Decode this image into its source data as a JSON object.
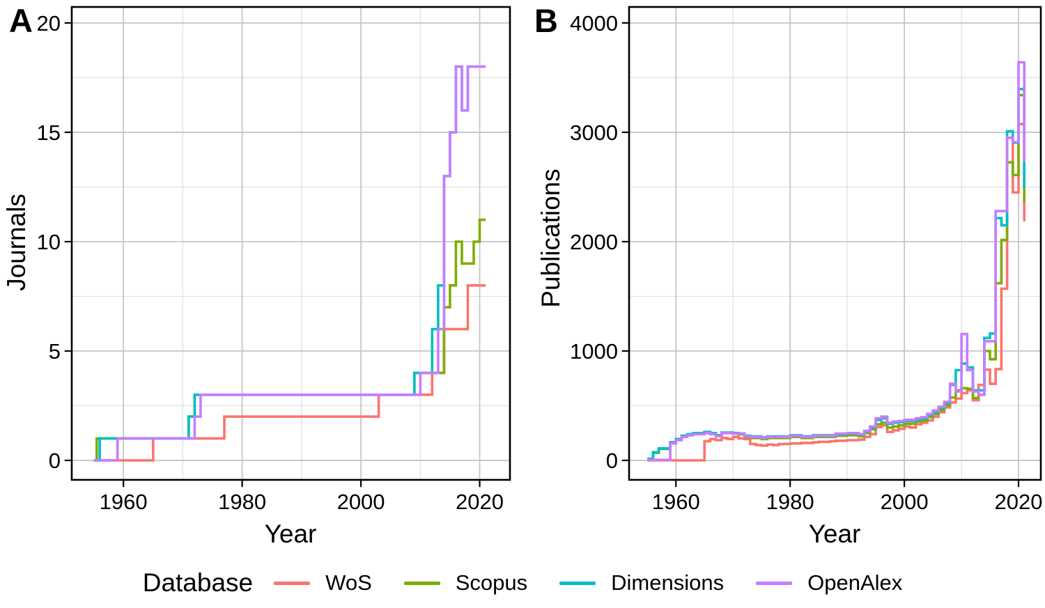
{
  "figure": {
    "panel_a_label": "A",
    "panel_b_label": "B",
    "background": "#ffffff"
  },
  "legend": {
    "title": "Database",
    "items": [
      {
        "key": "wos",
        "label": "WoS",
        "color": "#F8766D"
      },
      {
        "key": "scopus",
        "label": "Scopus",
        "color": "#7CAE00"
      },
      {
        "key": "dimensions",
        "label": "Dimensions",
        "color": "#00BFC4"
      },
      {
        "key": "openalex",
        "label": "OpenAlex",
        "color": "#C77CFF"
      }
    ]
  },
  "chart_data": [
    {
      "panel": "A",
      "type": "line",
      "step": true,
      "title": "",
      "xlabel": "Year",
      "ylabel": "Journals",
      "x_ticks": [
        1960,
        1980,
        2000,
        2020
      ],
      "x_minor": [
        1970,
        1990,
        2010
      ],
      "y_ticks": [
        0,
        5,
        10,
        15,
        20
      ],
      "y_minor": [
        2.5,
        7.5,
        12.5,
        17.5
      ],
      "xlim": [
        1951.3,
        2025.1
      ],
      "ylim": [
        -0.89,
        20.73
      ],
      "grid": true,
      "legend_position": "bottom",
      "series": [
        {
          "name": "WoS",
          "color": "#F8766D",
          "points": [
            [
              1955,
              0
            ],
            [
              1965,
              1
            ],
            [
              1977,
              2
            ],
            [
              2003,
              3
            ],
            [
              2012,
              4
            ],
            [
              2014,
              6
            ],
            [
              2018,
              8
            ],
            [
              2021,
              8
            ]
          ]
        },
        {
          "name": "Scopus",
          "color": "#7CAE00",
          "points": [
            [
              1955,
              0
            ],
            [
              1955.5,
              1
            ],
            [
              1971,
              2
            ],
            [
              1972,
              3
            ],
            [
              2009,
              4
            ],
            [
              2014,
              7
            ],
            [
              2015,
              8
            ],
            [
              2016,
              10
            ],
            [
              2017,
              9
            ],
            [
              2019,
              10
            ],
            [
              2020,
              11
            ],
            [
              2021,
              11
            ]
          ]
        },
        {
          "name": "Dimensions",
          "color": "#00BFC4",
          "points": [
            [
              1955,
              0
            ],
            [
              1956,
              1
            ],
            [
              1971,
              2
            ],
            [
              1972,
              3
            ],
            [
              2009,
              4
            ],
            [
              2012,
              6
            ],
            [
              2013,
              8
            ],
            [
              2014,
              13
            ],
            [
              2015,
              15
            ],
            [
              2016,
              18
            ],
            [
              2017,
              16
            ],
            [
              2018,
              18
            ],
            [
              2021,
              18
            ]
          ]
        },
        {
          "name": "OpenAlex",
          "color": "#C77CFF",
          "points": [
            [
              1955,
              0
            ],
            [
              1959,
              1
            ],
            [
              1972,
              2
            ],
            [
              1973,
              3
            ],
            [
              2010,
              4
            ],
            [
              2013,
              6
            ],
            [
              2014,
              13
            ],
            [
              2015,
              15
            ],
            [
              2016,
              18
            ],
            [
              2017,
              16
            ],
            [
              2018,
              18
            ],
            [
              2021,
              18
            ]
          ]
        }
      ]
    },
    {
      "panel": "B",
      "type": "line",
      "step": true,
      "title": "",
      "xlabel": "Year",
      "ylabel": "Publications",
      "x_ticks": [
        1960,
        1980,
        2000,
        2020
      ],
      "x_minor": [
        1970,
        1990,
        2010
      ],
      "y_ticks": [
        0,
        1000,
        2000,
        3000,
        4000
      ],
      "y_minor": [
        500,
        1500,
        2500,
        3500
      ],
      "xlim": [
        1951.8,
        2023.9
      ],
      "ylim": [
        -178,
        4146
      ],
      "grid": true,
      "legend_position": "bottom",
      "series": [
        {
          "name": "WoS",
          "color": "#F8766D",
          "points": [
            [
              1955,
              0
            ],
            [
              1965,
              175
            ],
            [
              1966,
              195
            ],
            [
              1967,
              185
            ],
            [
              1968,
              205
            ],
            [
              1969,
              195
            ],
            [
              1970,
              215
            ],
            [
              1971,
              200
            ],
            [
              1972,
              195
            ],
            [
              1973,
              150
            ],
            [
              1974,
              140
            ],
            [
              1975,
              135
            ],
            [
              1976,
              145
            ],
            [
              1977,
              140
            ],
            [
              1978,
              150
            ],
            [
              1980,
              155
            ],
            [
              1982,
              160
            ],
            [
              1984,
              165
            ],
            [
              1985,
              170
            ],
            [
              1987,
              175
            ],
            [
              1988,
              180
            ],
            [
              1990,
              185
            ],
            [
              1992,
              190
            ],
            [
              1993,
              215
            ],
            [
              1994,
              240
            ],
            [
              1995,
              305
            ],
            [
              1996,
              320
            ],
            [
              1997,
              260
            ],
            [
              1998,
              275
            ],
            [
              1999,
              290
            ],
            [
              2000,
              310
            ],
            [
              2001,
              300
            ],
            [
              2002,
              330
            ],
            [
              2003,
              345
            ],
            [
              2004,
              365
            ],
            [
              2005,
              400
            ],
            [
              2006,
              440
            ],
            [
              2007,
              485
            ],
            [
              2008,
              530
            ],
            [
              2009,
              565
            ],
            [
              2010,
              615
            ],
            [
              2011,
              640
            ],
            [
              2012,
              550
            ],
            [
              2013,
              690
            ],
            [
              2014,
              830
            ],
            [
              2015,
              700
            ],
            [
              2016,
              835
            ],
            [
              2017,
              1570
            ],
            [
              2018,
              2950
            ],
            [
              2019,
              2450
            ],
            [
              2020,
              3075
            ],
            [
              2021,
              2185
            ]
          ]
        },
        {
          "name": "Scopus",
          "color": "#7CAE00",
          "points": [
            [
              1955,
              10
            ],
            [
              1956,
              70
            ],
            [
              1957,
              105
            ],
            [
              1959,
              160
            ],
            [
              1960,
              190
            ],
            [
              1961,
              220
            ],
            [
              1962,
              235
            ],
            [
              1963,
              245
            ],
            [
              1965,
              255
            ],
            [
              1966,
              245
            ],
            [
              1967,
              225
            ],
            [
              1968,
              250
            ],
            [
              1970,
              245
            ],
            [
              1971,
              240
            ],
            [
              1972,
              215
            ],
            [
              1973,
              205
            ],
            [
              1975,
              195
            ],
            [
              1976,
              205
            ],
            [
              1978,
              205
            ],
            [
              1980,
              215
            ],
            [
              1982,
              205
            ],
            [
              1984,
              215
            ],
            [
              1986,
              215
            ],
            [
              1988,
              225
            ],
            [
              1990,
              230
            ],
            [
              1992,
              220
            ],
            [
              1993,
              250
            ],
            [
              1994,
              285
            ],
            [
              1995,
              330
            ],
            [
              1996,
              345
            ],
            [
              1997,
              300
            ],
            [
              1998,
              310
            ],
            [
              1999,
              320
            ],
            [
              2000,
              335
            ],
            [
              2002,
              355
            ],
            [
              2003,
              365
            ],
            [
              2004,
              395
            ],
            [
              2005,
              425
            ],
            [
              2006,
              460
            ],
            [
              2007,
              505
            ],
            [
              2008,
              575
            ],
            [
              2009,
              640
            ],
            [
              2010,
              660
            ],
            [
              2011,
              655
            ],
            [
              2012,
              570
            ],
            [
              2013,
              600
            ],
            [
              2014,
              1000
            ],
            [
              2015,
              925
            ],
            [
              2016,
              1620
            ],
            [
              2017,
              2015
            ],
            [
              2018,
              2725
            ],
            [
              2019,
              2610
            ],
            [
              2020,
              3340
            ],
            [
              2021,
              2365
            ]
          ]
        },
        {
          "name": "Dimensions",
          "color": "#00BFC4",
          "points": [
            [
              1955,
              15
            ],
            [
              1956,
              75
            ],
            [
              1957,
              110
            ],
            [
              1959,
              165
            ],
            [
              1960,
              195
            ],
            [
              1961,
              225
            ],
            [
              1962,
              240
            ],
            [
              1963,
              250
            ],
            [
              1965,
              260
            ],
            [
              1966,
              250
            ],
            [
              1967,
              230
            ],
            [
              1968,
              255
            ],
            [
              1970,
              250
            ],
            [
              1971,
              245
            ],
            [
              1972,
              225
            ],
            [
              1973,
              220
            ],
            [
              1975,
              210
            ],
            [
              1976,
              220
            ],
            [
              1978,
              220
            ],
            [
              1980,
              230
            ],
            [
              1982,
              220
            ],
            [
              1984,
              230
            ],
            [
              1986,
              230
            ],
            [
              1988,
              240
            ],
            [
              1990,
              245
            ],
            [
              1992,
              235
            ],
            [
              1993,
              265
            ],
            [
              1994,
              300
            ],
            [
              1995,
              370
            ],
            [
              1996,
              385
            ],
            [
              1997,
              335
            ],
            [
              1998,
              345
            ],
            [
              1999,
              350
            ],
            [
              2000,
              360
            ],
            [
              2002,
              375
            ],
            [
              2003,
              385
            ],
            [
              2004,
              415
            ],
            [
              2005,
              445
            ],
            [
              2006,
              480
            ],
            [
              2007,
              525
            ],
            [
              2008,
              690
            ],
            [
              2009,
              825
            ],
            [
              2010,
              885
            ],
            [
              2011,
              850
            ],
            [
              2012,
              640
            ],
            [
              2013,
              640
            ],
            [
              2014,
              1120
            ],
            [
              2015,
              1160
            ],
            [
              2016,
              2215
            ],
            [
              2017,
              2150
            ],
            [
              2018,
              3010
            ],
            [
              2019,
              2905
            ],
            [
              2020,
              3395
            ],
            [
              2021,
              2490
            ]
          ]
        },
        {
          "name": "OpenAlex",
          "color": "#C77CFF",
          "points": [
            [
              1955,
              5
            ],
            [
              1959,
              155
            ],
            [
              1960,
              185
            ],
            [
              1961,
              215
            ],
            [
              1962,
              230
            ],
            [
              1963,
              240
            ],
            [
              1965,
              250
            ],
            [
              1966,
              240
            ],
            [
              1967,
              220
            ],
            [
              1968,
              250
            ],
            [
              1970,
              245
            ],
            [
              1971,
              245
            ],
            [
              1972,
              220
            ],
            [
              1973,
              215
            ],
            [
              1975,
              205
            ],
            [
              1976,
              215
            ],
            [
              1978,
              215
            ],
            [
              1980,
              225
            ],
            [
              1982,
              215
            ],
            [
              1984,
              225
            ],
            [
              1986,
              225
            ],
            [
              1988,
              245
            ],
            [
              1990,
              250
            ],
            [
              1992,
              240
            ],
            [
              1993,
              270
            ],
            [
              1994,
              310
            ],
            [
              1995,
              385
            ],
            [
              1996,
              400
            ],
            [
              1997,
              345
            ],
            [
              1998,
              355
            ],
            [
              1999,
              360
            ],
            [
              2000,
              370
            ],
            [
              2002,
              385
            ],
            [
              2003,
              395
            ],
            [
              2004,
              425
            ],
            [
              2005,
              455
            ],
            [
              2006,
              490
            ],
            [
              2007,
              535
            ],
            [
              2008,
              700
            ],
            [
              2009,
              630
            ],
            [
              2010,
              1155
            ],
            [
              2011,
              825
            ],
            [
              2012,
              630
            ],
            [
              2013,
              600
            ],
            [
              2014,
              1090
            ],
            [
              2015,
              1090
            ],
            [
              2016,
              2280
            ],
            [
              2017,
              2280
            ],
            [
              2018,
              2950
            ],
            [
              2019,
              2910
            ],
            [
              2020,
              3640
            ],
            [
              2021,
              2730
            ]
          ]
        }
      ]
    }
  ]
}
